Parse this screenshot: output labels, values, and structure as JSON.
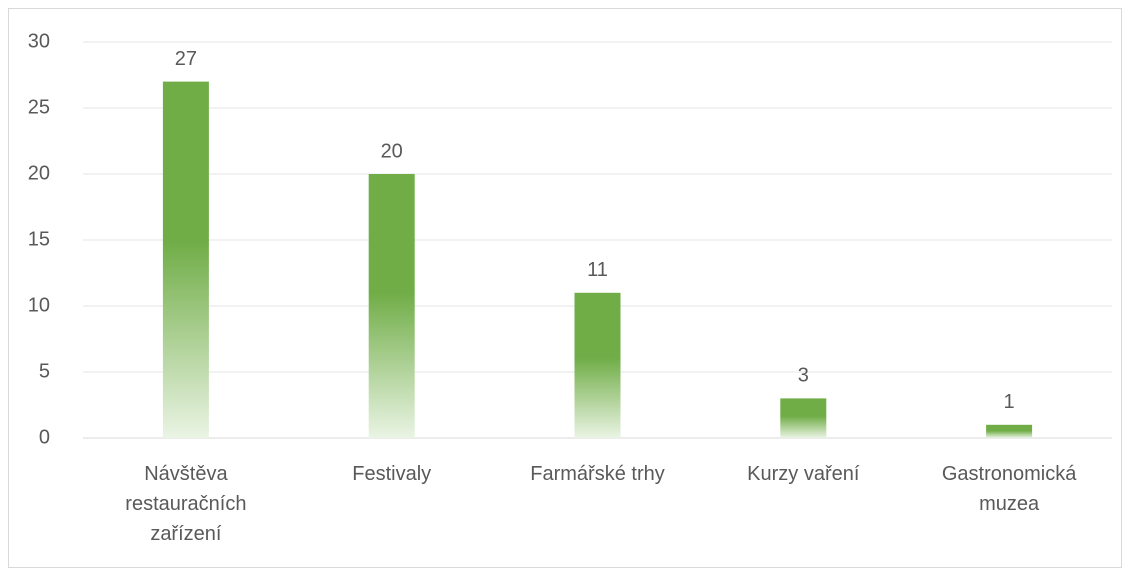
{
  "chart_data": {
    "type": "bar",
    "categories": [
      "Návštěva restauračních zařízení",
      "Festivaly",
      "Farmářské trhy",
      "Kurzy vaření",
      "Gastronomická muzea"
    ],
    "values": [
      27,
      20,
      11,
      3,
      1
    ],
    "color": "#70ad47",
    "ylim": [
      0,
      30
    ],
    "yticks": [
      0,
      5,
      10,
      15,
      20,
      25,
      30
    ],
    "grid": true
  }
}
